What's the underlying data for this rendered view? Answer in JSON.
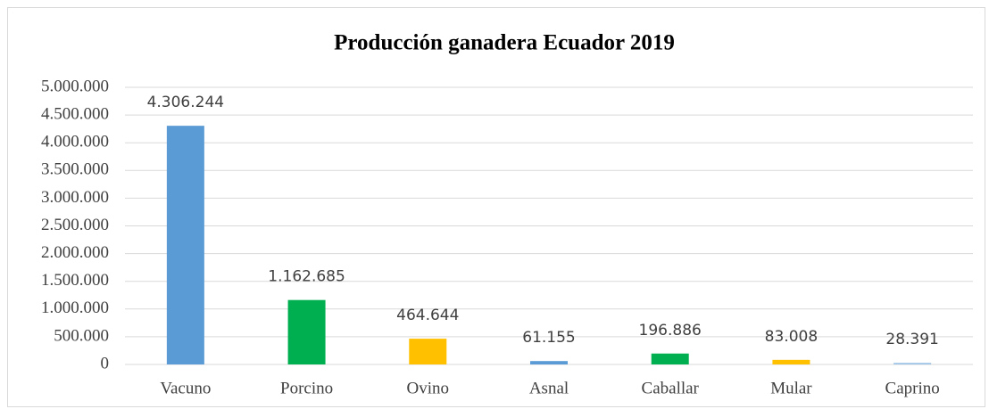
{
  "chart_data": {
    "type": "bar",
    "title": "Producción ganadera Ecuador 2019",
    "categories": [
      "Vacuno",
      "Porcino",
      "Ovino",
      "Asnal",
      "Caballar",
      "Mular",
      "Caprino"
    ],
    "values": [
      4306244,
      1162685,
      464644,
      61155,
      196886,
      83008,
      28391
    ],
    "value_labels": [
      "4.306.244",
      "1.162.685",
      "464.644",
      "61.155",
      "196.886",
      "83.008",
      "28.391"
    ],
    "colors": [
      "#5b9bd5",
      "#00b050",
      "#ffc000",
      "#5b9bd5",
      "#00b050",
      "#ffc000",
      "#9dc3e6"
    ],
    "ylim": [
      0,
      5000000
    ],
    "yticks": [
      0,
      {
        "value": 500000,
        "label": "500.000"
      },
      {
        "value": 1000000,
        "label": "1.000.000"
      },
      {
        "value": 1500000,
        "label": "1.500.000"
      },
      {
        "value": 2000000,
        "label": "2.000.000"
      },
      {
        "value": 2500000,
        "label": "2.500.000"
      },
      {
        "value": 3000000,
        "label": "3.000.000"
      },
      {
        "value": 3500000,
        "label": "3.500.000"
      },
      {
        "value": 4000000,
        "label": "4.000.000"
      },
      {
        "value": 4500000,
        "label": "4.500.000"
      },
      {
        "value": 5000000,
        "label": "5.000.000"
      }
    ],
    "grid": true
  }
}
